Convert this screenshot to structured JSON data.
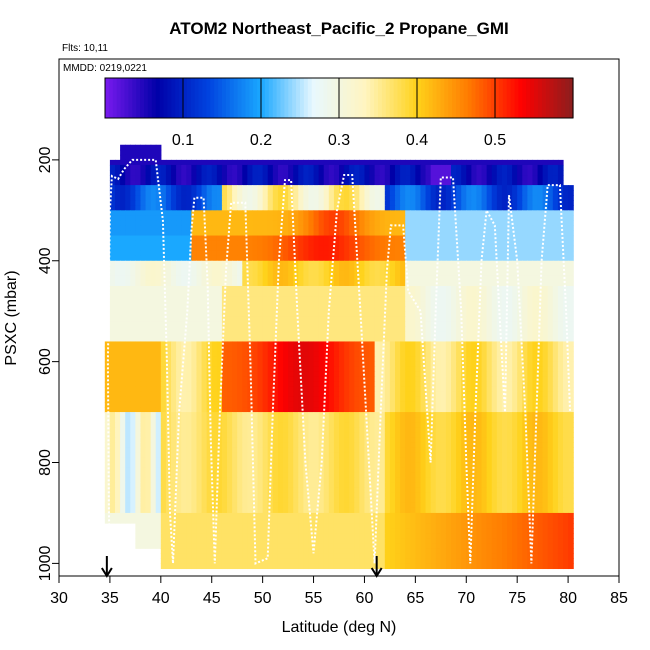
{
  "chart_data": {
    "type": "heatmap",
    "title": "ATOM2 Northeast_Pacific_2 Propane_GMI",
    "subtitle_flights": "Flts: 10,11",
    "subtitle_dates": "MMDD: 0219,0221",
    "xlabel": "Latitude (deg N)",
    "ylabel": "PSXC (mbar)",
    "xlim": [
      30,
      85
    ],
    "ylim": [
      1025,
      0
    ],
    "y_reversed": true,
    "x_ticks": [
      30,
      35,
      40,
      45,
      50,
      55,
      60,
      65,
      70,
      75,
      80,
      85
    ],
    "y_ticks": [
      200,
      400,
      600,
      800,
      1000
    ],
    "colorbar": {
      "range": [
        0,
        0.6
      ],
      "ticks": [
        0.1,
        0.2,
        0.3,
        0.4,
        0.5
      ],
      "tick_labels": [
        "0.1",
        "0.2",
        "0.3",
        "0.4",
        "0.5"
      ],
      "stops": [
        "#7a1aef",
        "#0000a8",
        "#0044e0",
        "#1aa8ff",
        "#e8f8ff",
        "#fff5c0",
        "#ffd21a",
        "#ff7a00",
        "#ff0000",
        "#8b1e1e"
      ]
    },
    "arrow_markers_lat": [
      34.7,
      61.2
    ],
    "flight_track": [
      [
        35.0,
        980
      ],
      [
        34.9,
        900
      ],
      [
        34.8,
        600
      ],
      [
        35.0,
        300
      ],
      [
        35.2,
        232
      ],
      [
        35.8,
        238
      ],
      [
        36.4,
        218
      ],
      [
        37.2,
        200
      ],
      [
        39.5,
        200
      ],
      [
        40.2,
        320
      ],
      [
        40.6,
        600
      ],
      [
        40.9,
        900
      ],
      [
        41.2,
        1000
      ],
      [
        41.8,
        700
      ],
      [
        42.6,
        500
      ],
      [
        43.0,
        340
      ],
      [
        43.3,
        275
      ],
      [
        44.2,
        275
      ],
      [
        44.6,
        450
      ],
      [
        44.9,
        750
      ],
      [
        45.3,
        1000
      ],
      [
        45.8,
        700
      ],
      [
        46.4,
        420
      ],
      [
        46.9,
        285
      ],
      [
        48.3,
        285
      ],
      [
        48.8,
        600
      ],
      [
        49.3,
        1000
      ],
      [
        50.5,
        990
      ],
      [
        51.0,
        700
      ],
      [
        51.6,
        400
      ],
      [
        52.2,
        240
      ],
      [
        52.8,
        240
      ],
      [
        53.4,
        500
      ],
      [
        54.2,
        800
      ],
      [
        55.0,
        980
      ],
      [
        55.8,
        800
      ],
      [
        56.5,
        500
      ],
      [
        57.3,
        300
      ],
      [
        58.0,
        230
      ],
      [
        58.8,
        230
      ],
      [
        59.6,
        500
      ],
      [
        60.5,
        820
      ],
      [
        61.0,
        1000
      ],
      [
        61.6,
        700
      ],
      [
        62.2,
        420
      ],
      [
        62.6,
        330
      ],
      [
        63.8,
        330
      ],
      [
        64.3,
        460
      ],
      [
        65.5,
        500
      ],
      [
        66.0,
        650
      ],
      [
        66.5,
        800
      ],
      [
        67.0,
        500
      ],
      [
        67.5,
        235
      ],
      [
        68.7,
        235
      ],
      [
        69.5,
        500
      ],
      [
        70.0,
        800
      ],
      [
        70.4,
        1000
      ],
      [
        70.9,
        700
      ],
      [
        71.5,
        400
      ],
      [
        72.0,
        300
      ],
      [
        72.8,
        330
      ],
      [
        73.3,
        520
      ],
      [
        73.8,
        700
      ],
      [
        74.2,
        270
      ],
      [
        75.0,
        400
      ],
      [
        75.8,
        700
      ],
      [
        76.4,
        1000
      ],
      [
        76.9,
        700
      ],
      [
        77.4,
        400
      ],
      [
        78.0,
        250
      ],
      [
        79.2,
        250
      ],
      [
        79.8,
        500
      ],
      [
        80.2,
        700
      ]
    ]
  }
}
